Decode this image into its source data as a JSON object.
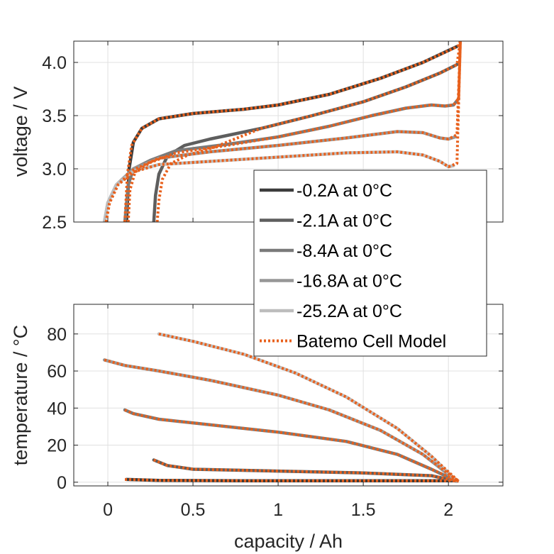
{
  "chart_data": [
    {
      "type": "line",
      "panel": "top",
      "xlabel": "",
      "ylabel": "voltage / V",
      "xlim": [
        -0.2,
        2.32
      ],
      "ylim": [
        2.5,
        4.2
      ],
      "xticks": [
        0,
        0.5,
        1,
        1.5,
        2
      ],
      "yticks": [
        2.5,
        3.0,
        3.5,
        4.0
      ],
      "ytick_labels": [
        "2.5",
        "3.0",
        "3.5",
        "4.0"
      ],
      "show_xtick_labels": false,
      "grid": true,
      "series": [
        {
          "name": "-0.2A at 0°C",
          "color": "#3c3c3c",
          "x": [
            0.11,
            0.125,
            0.15,
            0.2,
            0.3,
            0.5,
            0.8,
            1.0,
            1.3,
            1.6,
            1.85,
            2.05
          ],
          "y": [
            2.5,
            3.0,
            3.25,
            3.38,
            3.47,
            3.52,
            3.56,
            3.6,
            3.7,
            3.85,
            4.0,
            4.15
          ]
        },
        {
          "name": "-2.1A at 0°C",
          "color": "#5e5e5e",
          "x": [
            0.27,
            0.28,
            0.3,
            0.35,
            0.45,
            0.6,
            0.9,
            1.2,
            1.5,
            1.75,
            1.95,
            2.05
          ],
          "y": [
            2.5,
            2.75,
            2.95,
            3.12,
            3.22,
            3.28,
            3.38,
            3.5,
            3.63,
            3.77,
            3.9,
            3.98
          ]
        },
        {
          "name": "-8.4A at 0°C",
          "color": "#7a7a7a",
          "x": [
            0.1,
            0.12,
            0.15,
            0.25,
            0.4,
            0.7,
            1.0,
            1.3,
            1.55,
            1.75,
            1.9,
            1.98,
            2.03,
            2.06
          ],
          "y": [
            2.5,
            2.85,
            3.0,
            3.08,
            3.17,
            3.23,
            3.3,
            3.4,
            3.5,
            3.57,
            3.6,
            3.59,
            3.6,
            3.66
          ]
        },
        {
          "name": "-16.8A at 0°C",
          "color": "#979797",
          "x": [
            -0.02,
            0.0,
            0.05,
            0.15,
            0.3,
            0.6,
            1.0,
            1.4,
            1.7,
            1.85,
            1.95,
            2.0,
            2.04
          ],
          "y": [
            2.5,
            2.68,
            2.85,
            3.0,
            3.1,
            3.16,
            3.22,
            3.29,
            3.35,
            3.34,
            3.29,
            3.28,
            3.3
          ]
        },
        {
          "name": "-25.2A at 0°C",
          "color": "#bdbdbd",
          "x": [
            -0.02,
            0.0,
            0.05,
            0.15,
            0.3,
            0.6,
            1.0,
            1.4,
            1.7,
            1.85,
            1.95,
            2.0,
            2.03
          ],
          "y": [
            2.5,
            2.68,
            2.85,
            2.98,
            3.04,
            3.07,
            3.11,
            3.15,
            3.16,
            3.13,
            3.07,
            3.02,
            3.03
          ]
        }
      ],
      "model_fits": [
        {
          "x": [
            0.1,
            0.115,
            0.14,
            0.2,
            0.3,
            0.5,
            0.8,
            1.0,
            1.3,
            1.6,
            1.85,
            2.04,
            2.06,
            2.07
          ],
          "y": [
            2.5,
            2.95,
            3.22,
            3.38,
            3.47,
            3.52,
            3.56,
            3.6,
            3.7,
            3.85,
            4.0,
            4.14,
            4.16,
            4.2
          ]
        },
        {
          "x": [
            0.29,
            0.3,
            0.32,
            0.37,
            0.47,
            0.62,
            0.9,
            1.2,
            1.5,
            1.75,
            1.95,
            2.05,
            2.07
          ],
          "y": [
            2.5,
            2.7,
            2.9,
            3.05,
            3.13,
            3.2,
            3.38,
            3.5,
            3.63,
            3.77,
            3.9,
            3.98,
            4.2
          ]
        },
        {
          "x": [
            0.12,
            0.13,
            0.16,
            0.25,
            0.4,
            0.7,
            1.0,
            1.3,
            1.55,
            1.75,
            1.9,
            1.98,
            2.03,
            2.06,
            2.07
          ],
          "y": [
            2.5,
            2.8,
            2.97,
            3.06,
            3.15,
            3.22,
            3.3,
            3.4,
            3.5,
            3.57,
            3.6,
            3.59,
            3.6,
            3.66,
            4.2
          ]
        },
        {
          "x": [
            -0.01,
            0.01,
            0.06,
            0.15,
            0.3,
            0.6,
            1.0,
            1.4,
            1.7,
            1.85,
            1.95,
            2.0,
            2.05,
            2.07
          ],
          "y": [
            2.5,
            2.68,
            2.85,
            2.99,
            3.1,
            3.16,
            3.22,
            3.29,
            3.35,
            3.34,
            3.29,
            3.28,
            3.32,
            4.2
          ]
        },
        {
          "x": [
            -0.01,
            0.01,
            0.06,
            0.15,
            0.3,
            0.6,
            1.0,
            1.4,
            1.7,
            1.85,
            1.95,
            2.0,
            2.05,
            2.07
          ],
          "y": [
            2.5,
            2.68,
            2.85,
            2.97,
            3.04,
            3.07,
            3.11,
            3.15,
            3.16,
            3.13,
            3.07,
            3.02,
            3.05,
            4.2
          ]
        }
      ]
    },
    {
      "type": "line",
      "panel": "bottom",
      "xlabel": "capacity / Ah",
      "ylabel": "temperature / °C",
      "xlim": [
        -0.2,
        2.32
      ],
      "ylim": [
        -2,
        96
      ],
      "xticks": [
        0,
        0.5,
        1,
        1.5,
        2
      ],
      "xtick_labels": [
        "0",
        "0.5",
        "1",
        "1.5",
        "2"
      ],
      "yticks": [
        0,
        20,
        40,
        60,
        80
      ],
      "ytick_labels": [
        "0",
        "20",
        "40",
        "60",
        "80"
      ],
      "grid": true,
      "series": [
        {
          "name": "-0.2A at 0°C",
          "color": "#3c3c3c",
          "x": [
            0.11,
            0.3,
            0.8,
            1.5,
            2.0,
            2.05
          ],
          "y": [
            1.5,
            1.0,
            0.8,
            0.8,
            0.8,
            0.8
          ]
        },
        {
          "name": "-2.1A at 0°C",
          "color": "#5e5e5e",
          "x": [
            0.27,
            0.35,
            0.5,
            1.0,
            1.5,
            1.9,
            2.05
          ],
          "y": [
            12,
            9,
            7,
            6,
            5,
            3.5,
            0.5
          ]
        },
        {
          "name": "-8.4A at 0°C",
          "color": "#7a7a7a",
          "x": [
            0.1,
            0.15,
            0.3,
            0.6,
            1.0,
            1.4,
            1.7,
            1.9,
            2.05
          ],
          "y": [
            39,
            37,
            34,
            31,
            27,
            22,
            15,
            7,
            0.5
          ]
        },
        {
          "name": "-16.8A at 0°C",
          "color": "#979797",
          "x": [
            -0.02,
            0.1,
            0.3,
            0.6,
            1.0,
            1.3,
            1.6,
            1.85,
            2.05
          ],
          "y": [
            66,
            63,
            60,
            55,
            47,
            39,
            28,
            15,
            0.5
          ]
        },
        {
          "name": "-25.2A at 0°C",
          "color": "#bdbdbd",
          "x": [
            0.3,
            0.5,
            0.8,
            1.1,
            1.4,
            1.7,
            1.9,
            2.05
          ],
          "y": [
            80,
            76,
            69,
            59,
            46,
            29,
            14,
            0.5
          ]
        }
      ],
      "model_fits": [
        {
          "x": [
            0.1,
            0.3,
            0.8,
            1.5,
            2.0,
            2.06
          ],
          "y": [
            1.5,
            1.0,
            0.8,
            0.8,
            0.8,
            0.8
          ]
        },
        {
          "x": [
            0.27,
            0.35,
            0.5,
            1.0,
            1.5,
            1.9,
            2.06
          ],
          "y": [
            12,
            9,
            7,
            6,
            5,
            3.5,
            0.5
          ]
        },
        {
          "x": [
            0.1,
            0.15,
            0.3,
            0.6,
            1.0,
            1.4,
            1.7,
            1.9,
            2.06
          ],
          "y": [
            39,
            37,
            34,
            31,
            27,
            22,
            15,
            7,
            0.5
          ]
        },
        {
          "x": [
            -0.02,
            0.1,
            0.3,
            0.6,
            1.0,
            1.3,
            1.6,
            1.85,
            2.06
          ],
          "y": [
            66,
            63,
            60,
            55,
            47,
            39,
            28,
            15,
            0.5
          ]
        },
        {
          "x": [
            0.3,
            0.5,
            0.8,
            1.1,
            1.4,
            1.7,
            1.9,
            2.06
          ],
          "y": [
            80,
            76,
            69,
            59,
            46,
            29,
            14,
            0.5
          ]
        }
      ]
    }
  ],
  "legend": {
    "placement": "right, spanning both panels",
    "entries": [
      {
        "label": "-0.2A at 0°C",
        "color": "#3c3c3c",
        "style": "solid"
      },
      {
        "label": "-2.1A at 0°C",
        "color": "#5e5e5e",
        "style": "solid"
      },
      {
        "label": "-8.4A at 0°C",
        "color": "#7a7a7a",
        "style": "solid"
      },
      {
        "label": "-16.8A at 0°C",
        "color": "#979797",
        "style": "solid"
      },
      {
        "label": "-25.2A at 0°C",
        "color": "#bdbdbd",
        "style": "solid"
      },
      {
        "label": "Batemo Cell Model",
        "color": "#e8601c",
        "style": "dotted"
      }
    ]
  },
  "model_color": "#e8601c"
}
